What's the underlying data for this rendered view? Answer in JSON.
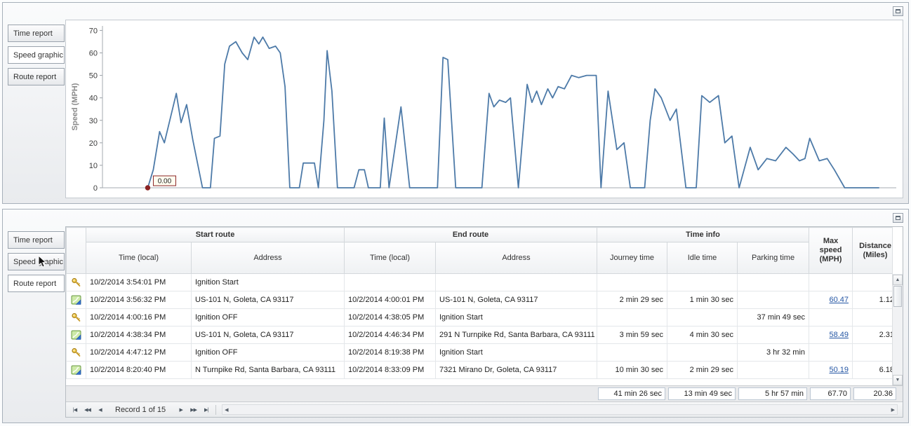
{
  "colors": {
    "chart_line": "#4d7aa8",
    "chart_marker": "#8b2323",
    "link": "#2456a4"
  },
  "icons": {
    "scroll_up": "▲",
    "scroll_down": "▼",
    "scroll_left": "◀",
    "scroll_right": "▶"
  },
  "top_panel": {
    "tabs": [
      "Time report",
      "Speed graphic",
      "Route report"
    ],
    "selected_tab": "Speed graphic"
  },
  "chart_data": {
    "type": "line",
    "title": "",
    "xlabel": "",
    "ylabel": "Speed (MPH)",
    "yticks": [
      0,
      10,
      20,
      30,
      40,
      50,
      60,
      70
    ],
    "ylim": [
      0,
      72
    ],
    "xlim": [
      0,
      100
    ],
    "grid": false,
    "legend": false,
    "annotation": {
      "text": "0.00"
    },
    "marker_color": "#8b2323",
    "series": [
      {
        "name": "Speed",
        "color": "#4d7aa8",
        "points": [
          [
            5.7,
            0
          ],
          [
            6.4,
            8
          ],
          [
            7.2,
            25
          ],
          [
            7.8,
            20
          ],
          [
            9.3,
            42
          ],
          [
            9.9,
            29
          ],
          [
            10.6,
            37
          ],
          [
            11.4,
            21
          ],
          [
            12.6,
            0
          ],
          [
            13.6,
            0
          ],
          [
            14.1,
            22
          ],
          [
            14.8,
            23
          ],
          [
            15.4,
            55
          ],
          [
            16.0,
            63
          ],
          [
            16.8,
            65
          ],
          [
            17.6,
            60
          ],
          [
            18.3,
            57
          ],
          [
            19.1,
            67
          ],
          [
            19.7,
            64
          ],
          [
            20.2,
            67
          ],
          [
            21.0,
            62
          ],
          [
            21.8,
            63
          ],
          [
            22.4,
            60
          ],
          [
            23.0,
            45
          ],
          [
            23.6,
            0
          ],
          [
            24.8,
            0
          ],
          [
            25.3,
            11
          ],
          [
            26.7,
            11
          ],
          [
            27.2,
            0
          ],
          [
            27.9,
            30
          ],
          [
            28.3,
            61
          ],
          [
            28.9,
            43
          ],
          [
            29.6,
            0
          ],
          [
            31.7,
            0
          ],
          [
            32.3,
            8
          ],
          [
            33.0,
            8
          ],
          [
            33.5,
            0
          ],
          [
            35.0,
            0
          ],
          [
            35.5,
            31
          ],
          [
            36.1,
            0
          ],
          [
            37.6,
            36
          ],
          [
            38.7,
            0
          ],
          [
            42.2,
            0
          ],
          [
            42.9,
            58
          ],
          [
            43.5,
            57
          ],
          [
            44.5,
            0
          ],
          [
            47.8,
            0
          ],
          [
            48.7,
            42
          ],
          [
            49.3,
            36
          ],
          [
            50.0,
            39
          ],
          [
            50.8,
            38
          ],
          [
            51.4,
            40
          ],
          [
            52.4,
            0
          ],
          [
            53.5,
            46
          ],
          [
            54.1,
            38
          ],
          [
            54.7,
            43
          ],
          [
            55.3,
            37
          ],
          [
            56.1,
            44
          ],
          [
            56.7,
            40
          ],
          [
            57.4,
            45
          ],
          [
            58.2,
            44
          ],
          [
            59.1,
            50
          ],
          [
            60.0,
            49
          ],
          [
            61.0,
            50
          ],
          [
            62.2,
            50
          ],
          [
            62.8,
            0
          ],
          [
            63.7,
            43
          ],
          [
            64.8,
            17
          ],
          [
            65.7,
            20
          ],
          [
            66.5,
            0
          ],
          [
            68.3,
            0
          ],
          [
            69.0,
            30
          ],
          [
            69.6,
            44
          ],
          [
            70.4,
            40
          ],
          [
            71.5,
            30
          ],
          [
            72.3,
            35
          ],
          [
            73.5,
            0
          ],
          [
            74.8,
            0
          ],
          [
            75.5,
            41
          ],
          [
            76.5,
            38
          ],
          [
            77.6,
            41
          ],
          [
            78.4,
            20
          ],
          [
            79.3,
            23
          ],
          [
            80.2,
            0
          ],
          [
            81.6,
            18
          ],
          [
            82.6,
            8
          ],
          [
            83.7,
            13
          ],
          [
            84.8,
            12
          ],
          [
            86.1,
            18
          ],
          [
            87.0,
            15
          ],
          [
            87.8,
            12
          ],
          [
            88.5,
            13
          ],
          [
            89.1,
            22
          ],
          [
            90.3,
            12
          ],
          [
            91.3,
            13
          ],
          [
            92.2,
            8
          ],
          [
            93.5,
            0
          ],
          [
            97.8,
            0
          ]
        ]
      }
    ]
  },
  "bottom_panel": {
    "tabs": [
      "Time report",
      "Speed graphic",
      "Route report"
    ],
    "selected_tab": "Route report",
    "table": {
      "group_headers": [
        "Start route",
        "End route",
        "Time info"
      ],
      "columns": [
        "Time (local)",
        "Address",
        "Time (local)",
        "Address",
        "Journey time",
        "Idle time",
        "Parking time"
      ],
      "tall_headers": [
        "Max speed (MPH)",
        "Distance (Miles)"
      ],
      "rows": [
        {
          "icon": "key",
          "speed_is_link": false,
          "cells": [
            "10/2/2014 3:54:01 PM",
            "Ignition Start",
            "",
            "",
            "",
            "",
            "",
            "",
            ""
          ]
        },
        {
          "icon": "route",
          "speed_is_link": true,
          "cells": [
            "10/2/2014 3:56:32 PM",
            "US-101 N, Goleta, CA 93117",
            "10/2/2014 4:00:01 PM",
            "US-101 N, Goleta, CA 93117",
            "2 min 29 sec",
            "1 min 30 sec",
            "",
            "60.47",
            "1.12"
          ]
        },
        {
          "icon": "key",
          "speed_is_link": false,
          "cells": [
            "10/2/2014 4:00:16 PM",
            "Ignition OFF",
            "10/2/2014 4:38:05 PM",
            "Ignition Start",
            "",
            "",
            "37 min 49 sec",
            "",
            ""
          ]
        },
        {
          "icon": "route",
          "speed_is_link": true,
          "cells": [
            "10/2/2014 4:38:34 PM",
            "US-101 N, Goleta, CA 93117",
            "10/2/2014 4:46:34 PM",
            "291 N Turnpike Rd, Santa Barbara, CA 93111",
            "3 min 59 sec",
            "4 min 30 sec",
            "",
            "58.49",
            "2.31"
          ]
        },
        {
          "icon": "key",
          "speed_is_link": false,
          "cells": [
            "10/2/2014 4:47:12 PM",
            "Ignition OFF",
            "10/2/2014 8:19:38 PM",
            "Ignition Start",
            "",
            "",
            "3 hr 32 min",
            "",
            ""
          ]
        },
        {
          "icon": "route",
          "speed_is_link": true,
          "cells": [
            "10/2/2014 8:20:40 PM",
            "N Turnpike Rd, Santa Barbara, CA 93111",
            "10/2/2014 8:33:09 PM",
            "7321 Mirano Dr, Goleta, CA 93117",
            "10 min 30 sec",
            "2 min 29 sec",
            "",
            "50.19",
            "6.18"
          ]
        }
      ],
      "summary": [
        "41 min 26 sec",
        "13 min 49 sec",
        "5 hr 57 min",
        "67.70",
        "20.36"
      ]
    },
    "navigator": {
      "left_buttons": [
        "|◀",
        "◀◀",
        "◀"
      ],
      "record_text": "Record 1 of 15",
      "right_buttons": [
        "▶",
        "▶▶",
        "▶|"
      ]
    }
  }
}
